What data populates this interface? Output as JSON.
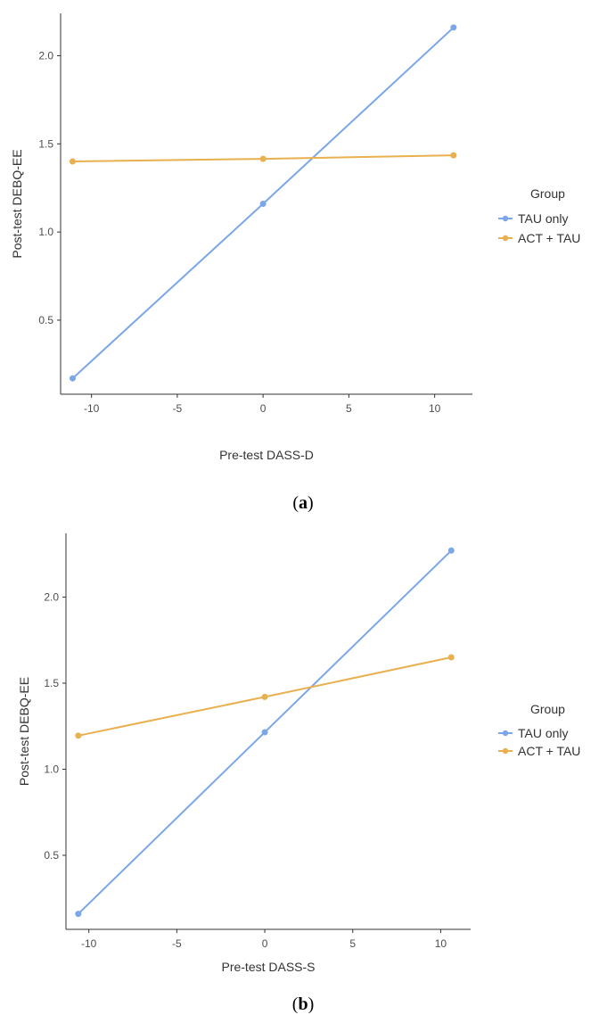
{
  "colors": {
    "tau_only": "#7ba7e8",
    "act_tau": "#e8b04e",
    "axis": "#333333"
  },
  "chart_data": [
    {
      "type": "line",
      "caption_prefix": "(",
      "caption_letter": "a",
      "caption_suffix": ")",
      "xlabel": "Pre-test DASS-D",
      "ylabel": "Post-test DEBQ-EE",
      "xlim": [
        -11.8,
        12.2
      ],
      "ylim": [
        0.08,
        2.24
      ],
      "xticks": [
        -10,
        -5,
        0,
        5,
        10
      ],
      "yticks": [
        0.5,
        1.0,
        1.5,
        2.0
      ],
      "ytick_labels": [
        "0.5",
        "1.0",
        "1.5",
        "2.0"
      ],
      "legend_title": "Group",
      "legend_position": "right",
      "series": [
        {
          "name": "TAU only",
          "color_key": "tau_only",
          "x": [
            -11.1,
            0,
            11.1
          ],
          "y": [
            0.17,
            1.16,
            2.16
          ]
        },
        {
          "name": "ACT + TAU",
          "color_key": "act_tau",
          "x": [
            -11.1,
            0,
            11.1
          ],
          "y": [
            1.4,
            1.415,
            1.435
          ]
        }
      ]
    },
    {
      "type": "line",
      "caption_prefix": "(",
      "caption_letter": "b",
      "caption_suffix": ")",
      "xlabel": "Pre-test DASS-S",
      "ylabel": "Post-test DEBQ-EE",
      "xlim": [
        -11.3,
        11.7
      ],
      "ylim": [
        0.07,
        2.37
      ],
      "xticks": [
        -10,
        -5,
        0,
        5,
        10
      ],
      "yticks": [
        0.5,
        1.0,
        1.5,
        2.0
      ],
      "ytick_labels": [
        "0.5",
        "1.0",
        "1.5",
        "2.0"
      ],
      "legend_title": "Group",
      "legend_position": "right",
      "series": [
        {
          "name": "TAU only",
          "color_key": "tau_only",
          "x": [
            -10.6,
            0,
            10.6
          ],
          "y": [
            0.16,
            1.215,
            2.27
          ]
        },
        {
          "name": "ACT + TAU",
          "color_key": "act_tau",
          "x": [
            -10.6,
            0,
            10.6
          ],
          "y": [
            1.195,
            1.42,
            1.65
          ]
        }
      ]
    }
  ]
}
